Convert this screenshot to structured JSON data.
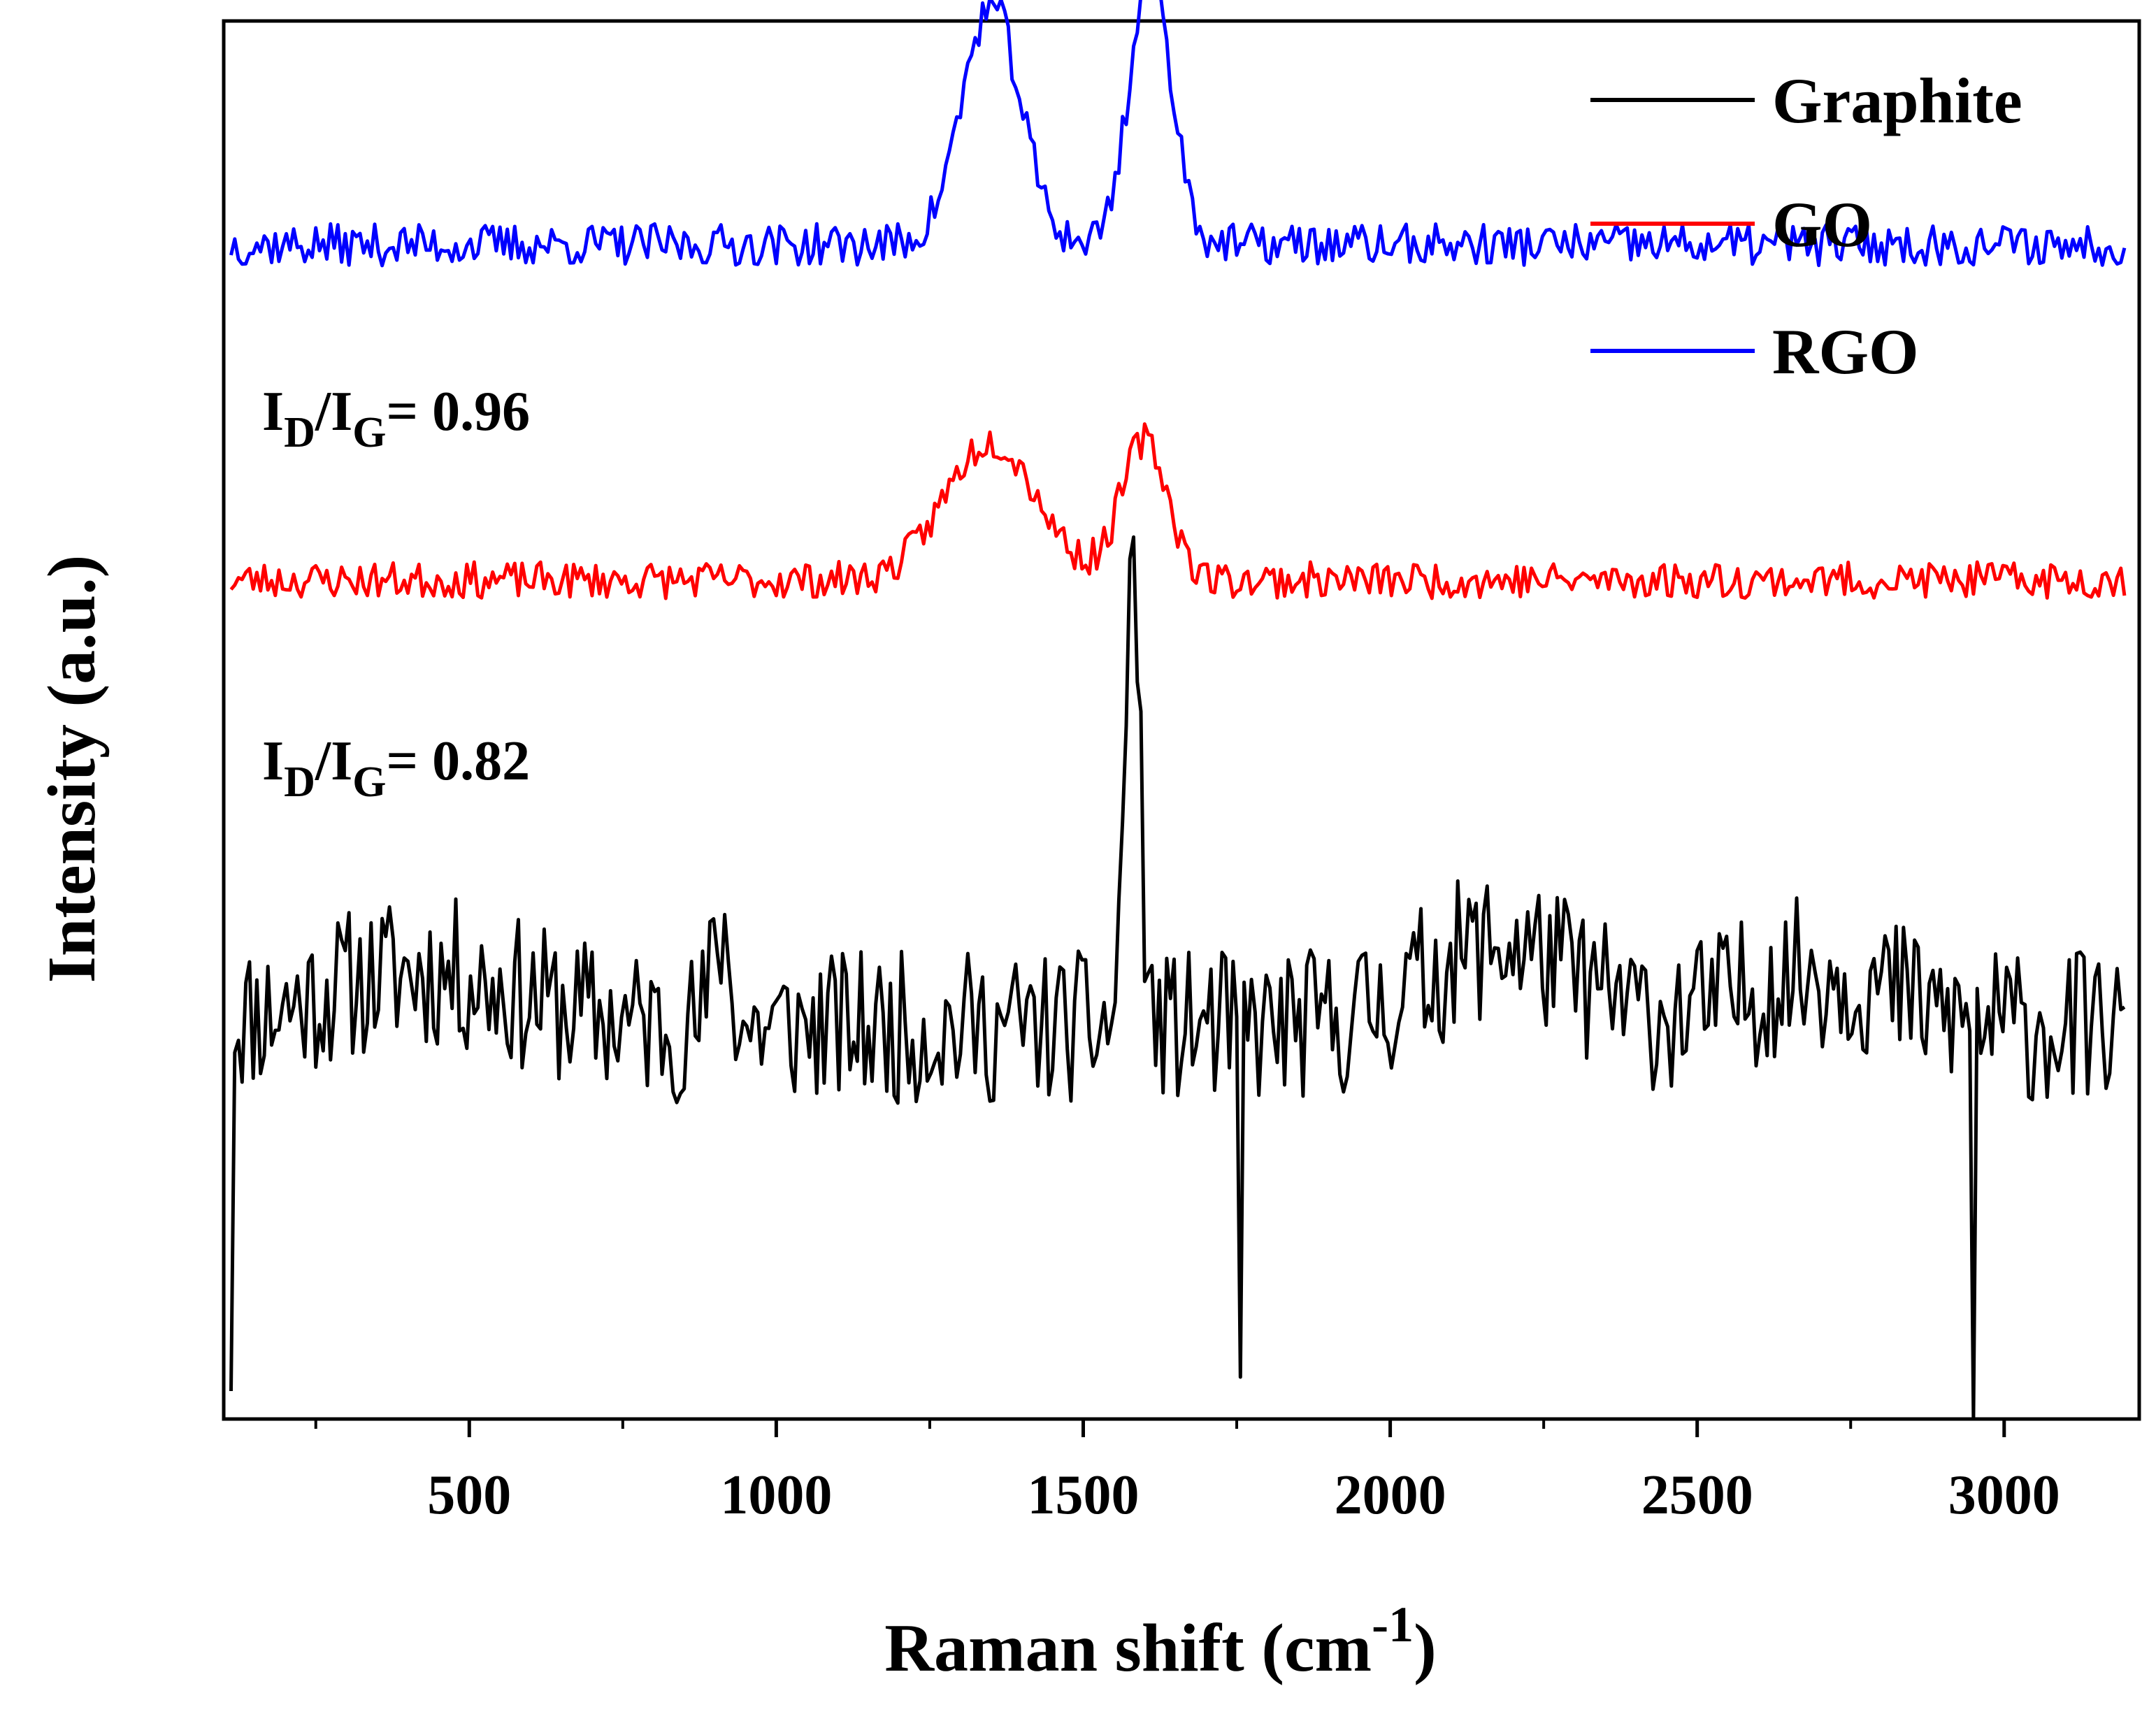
{
  "chart_data": {
    "type": "line",
    "title": "",
    "xlabel": "Raman shift (cm",
    "xlabel_superscript": "-1",
    "xlabel_close": ")",
    "ylabel": "Intensity (a.u.)",
    "xlim": [
      100,
      3220
    ],
    "ylim": [
      0,
      100
    ],
    "x_ticks": [
      500,
      1000,
      1500,
      2000,
      2500,
      3000
    ],
    "x_tick_labels": [
      "500",
      "1000",
      "1500",
      "2000",
      "2500",
      "3000"
    ],
    "y_ticks_shown": false,
    "legend_position": "top-right",
    "series": [
      {
        "name": "Graphite",
        "color": "#000000",
        "baseline": 28,
        "noise": 5.5,
        "seed": 11,
        "peaks": [
          {
            "center": 1580,
            "height": 34,
            "width": 12
          },
          {
            "center": 420,
            "height": 4,
            "width": 160
          },
          {
            "center": 910,
            "height": 7,
            "width": 14
          },
          {
            "center": 2180,
            "height": 6,
            "width": 120
          },
          {
            "center": 2700,
            "height": 4,
            "width": 120
          }
        ],
        "start_drop": {
          "x": 112,
          "value": 2
        },
        "dips": [
          {
            "x": 1755,
            "value": 3
          },
          {
            "x": 2950,
            "value": 0
          }
        ]
      },
      {
        "name": "GO",
        "color": "#ff0000",
        "baseline": 60,
        "noise": 1.3,
        "seed": 23,
        "peaks": [
          {
            "center": 1350,
            "height": 10,
            "width": 75
          },
          {
            "center": 1600,
            "height": 10,
            "width": 38
          }
        ],
        "start_drop": null,
        "dips": []
      },
      {
        "name": "RGO",
        "color": "#0000ff",
        "baseline": 84,
        "noise": 1.5,
        "seed": 37,
        "peaks": [
          {
            "center": 1350,
            "height": 17,
            "width": 48
          },
          {
            "center": 1610,
            "height": 19,
            "width": 35
          }
        ],
        "start_drop": null,
        "dips": []
      }
    ],
    "annotations": [
      {
        "main": "I",
        "sub": "D",
        "slash": "/I",
        "sub2": "G",
        "rest": "= 0.96",
        "series": "RGO"
      },
      {
        "main": "I",
        "sub": "D",
        "slash": "/I",
        "sub2": "G",
        "rest": "= 0.82",
        "series": "GO"
      }
    ]
  }
}
